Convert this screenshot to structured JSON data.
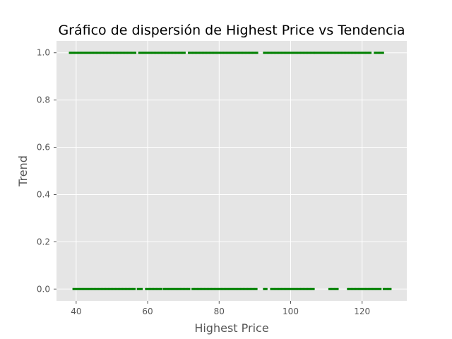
{
  "chart_data": {
    "type": "scatter",
    "title": "Gráfico de dispersión de Highest Price vs Tendencia",
    "xlabel": "Highest Price",
    "ylabel": "Trend",
    "xlim": [
      34.5,
      132.5
    ],
    "ylim": [
      -0.05,
      1.05
    ],
    "x_ticks": [
      40,
      60,
      80,
      100,
      120
    ],
    "y_ticks": [
      0.0,
      0.2,
      0.4,
      0.6,
      0.8,
      1.0
    ],
    "x_tick_labels": [
      "40",
      "60",
      "80",
      "100",
      "120"
    ],
    "y_tick_labels": [
      "0.0",
      "0.2",
      "0.4",
      "0.6",
      "0.8",
      "1.0"
    ],
    "grid": true,
    "background": "#e5e5e5",
    "grid_color": "#ffffff",
    "point_color": "#008000",
    "series": [
      {
        "values_description": "trend = 1",
        "y": 1,
        "x_ranges": [
          [
            38.2,
            56.8
          ],
          [
            57.6,
            70.5
          ],
          [
            71.5,
            90.8
          ],
          [
            92.5,
            106.5
          ],
          [
            106.8,
            112.0
          ],
          [
            112.4,
            122.5
          ],
          [
            123.5,
            126.0
          ]
        ]
      },
      {
        "values_description": "trend = 0",
        "y": 0,
        "x_ranges": [
          [
            39.2,
            56.5
          ],
          [
            57.2,
            58.5
          ],
          [
            59.5,
            64.0
          ],
          [
            64.5,
            71.8
          ],
          [
            72.5,
            90.5
          ],
          [
            92.5,
            93.5
          ],
          [
            94.5,
            106.5
          ],
          [
            110.8,
            113.5
          ],
          [
            116.0,
            125.5
          ],
          [
            126.0,
            128.0
          ]
        ]
      }
    ]
  }
}
